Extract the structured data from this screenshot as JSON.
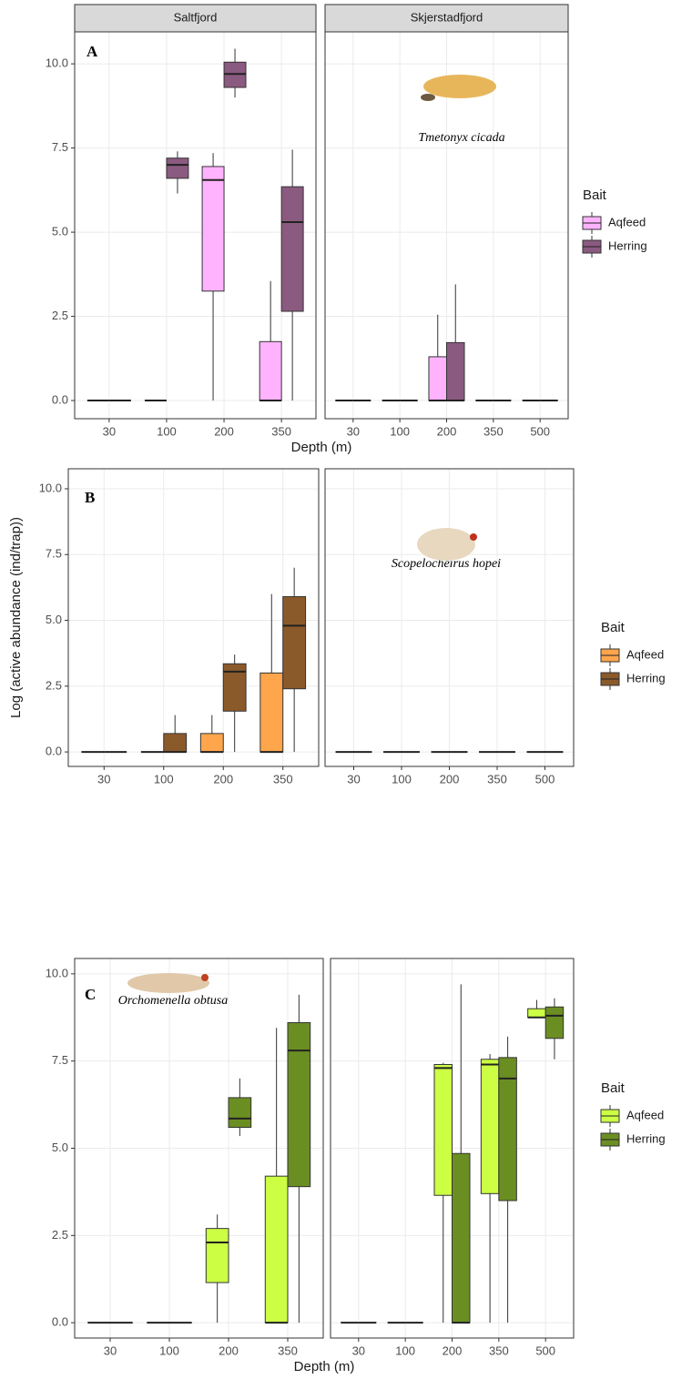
{
  "chart_data": [
    {
      "type": "box",
      "panel_label": "A",
      "species": "Tmetonyx cicada",
      "x_label": "Depth (m)",
      "legend_title": "Bait",
      "ylim": [
        -0.54,
        10.95
      ],
      "yticks": [
        {
          "value": 0,
          "label": "0.0"
        },
        2.5,
        {
          "value": 5,
          "label": "5.0"
        },
        7.5,
        {
          "value": 10,
          "label": "10.0"
        }
      ],
      "facets": [
        {
          "title": "Saltfjord",
          "categories": [
            "30",
            "100",
            "200",
            "350"
          ]
        },
        {
          "title": "Skjerstadfjord",
          "categories": [
            "30",
            "100",
            "200",
            "350",
            "500"
          ]
        }
      ],
      "series": [
        {
          "name": "Aqfeed",
          "color": "#ffb3ff",
          "values": [
            [
              {
                "low": 0,
                "q1": 0,
                "median": 0,
                "q3": 0,
                "high": 0
              },
              {
                "low": 0,
                "q1": 0,
                "median": 0,
                "q3": 0,
                "high": 0
              },
              {
                "low": 0,
                "q1": 3.25,
                "median": 6.55,
                "q3": 6.95,
                "high": 7.35
              },
              {
                "low": 0,
                "q1": 0,
                "median": 0,
                "q3": 1.75,
                "high": 3.55
              }
            ],
            [
              {
                "low": 0,
                "q1": 0,
                "median": 0,
                "q3": 0,
                "high": 0
              },
              {
                "low": 0,
                "q1": 0,
                "median": 0,
                "q3": 0,
                "high": 0
              },
              {
                "low": 0,
                "q1": 0,
                "median": 0,
                "q3": 1.3,
                "high": 2.55
              },
              {
                "low": 0,
                "q1": 0,
                "median": 0,
                "q3": 0,
                "high": 0
              },
              {
                "low": 0,
                "q1": 0,
                "median": 0,
                "q3": 0,
                "high": 0
              }
            ]
          ]
        },
        {
          "name": "Herring",
          "color": "#8b5a80",
          "values": [
            [
              {
                "low": 0,
                "q1": 0,
                "median": 0,
                "q3": 0,
                "high": 0
              },
              {
                "low": 6.15,
                "q1": 6.6,
                "median": 7.0,
                "q3": 7.2,
                "high": 7.4
              },
              {
                "low": 9.0,
                "q1": 9.3,
                "median": 9.7,
                "q3": 10.05,
                "high": 10.45
              },
              {
                "low": 0,
                "q1": 2.65,
                "median": 5.3,
                "q3": 6.35,
                "high": 7.45
              }
            ],
            [
              {
                "low": 0,
                "q1": 0,
                "median": 0,
                "q3": 0,
                "high": 0
              },
              {
                "low": 0,
                "q1": 0,
                "median": 0,
                "q3": 0,
                "high": 0
              },
              {
                "low": 0,
                "q1": 0,
                "median": 0,
                "q3": 1.72,
                "high": 3.45
              },
              {
                "low": 0,
                "q1": 0,
                "median": 0,
                "q3": 0,
                "high": 0
              },
              {
                "low": 0,
                "q1": 0,
                "median": 0,
                "q3": 0,
                "high": 0
              }
            ]
          ]
        }
      ]
    },
    {
      "type": "box",
      "panel_label": "B",
      "species": "Scopelocheirus hopei",
      "y_label": "Log (active abundance (ind/trap))",
      "legend_title": "Bait",
      "ylim": [
        -0.55,
        10.76
      ],
      "yticks": [
        {
          "value": 0,
          "label": "0.0"
        },
        2.5,
        {
          "value": 5,
          "label": "5.0"
        },
        7.5,
        {
          "value": 10,
          "label": "10.0"
        }
      ],
      "facets": [
        {
          "categories": [
            "30",
            "100",
            "200",
            "350"
          ]
        },
        {
          "categories": [
            "30",
            "100",
            "200",
            "350",
            "500"
          ]
        }
      ],
      "series": [
        {
          "name": "Aqfeed",
          "color": "#ffa64d",
          "values": [
            [
              {
                "low": 0,
                "q1": 0,
                "median": 0,
                "q3": 0,
                "high": 0
              },
              {
                "low": 0,
                "q1": 0,
                "median": 0,
                "q3": 0,
                "high": 0
              },
              {
                "low": 0,
                "q1": 0,
                "median": 0,
                "q3": 0.7,
                "high": 1.4
              },
              {
                "low": 0,
                "q1": 0,
                "median": 0,
                "q3": 3.0,
                "high": 6.0
              }
            ],
            [
              {
                "low": 0,
                "q1": 0,
                "median": 0,
                "q3": 0,
                "high": 0
              },
              {
                "low": 0,
                "q1": 0,
                "median": 0,
                "q3": 0,
                "high": 0
              },
              {
                "low": 0,
                "q1": 0,
                "median": 0,
                "q3": 0,
                "high": 0
              },
              {
                "low": 0,
                "q1": 0,
                "median": 0,
                "q3": 0,
                "high": 0
              },
              {
                "low": 0,
                "q1": 0,
                "median": 0,
                "q3": 0,
                "high": 0
              }
            ]
          ]
        },
        {
          "name": "Herring",
          "color": "#8b5a2b",
          "values": [
            [
              {
                "low": 0,
                "q1": 0,
                "median": 0,
                "q3": 0,
                "high": 0
              },
              {
                "low": 0,
                "q1": 0,
                "median": 0,
                "q3": 0.7,
                "high": 1.4
              },
              {
                "low": 0,
                "q1": 1.55,
                "median": 3.05,
                "q3": 3.35,
                "high": 3.7
              },
              {
                "low": 0,
                "q1": 2.4,
                "median": 4.8,
                "q3": 5.9,
                "high": 7.0
              }
            ],
            [
              {
                "low": 0,
                "q1": 0,
                "median": 0,
                "q3": 0,
                "high": 0
              },
              {
                "low": 0,
                "q1": 0,
                "median": 0,
                "q3": 0,
                "high": 0
              },
              {
                "low": 0,
                "q1": 0,
                "median": 0,
                "q3": 0,
                "high": 0
              },
              {
                "low": 0,
                "q1": 0,
                "median": 0,
                "q3": 0,
                "high": 0
              },
              {
                "low": 0,
                "q1": 0,
                "median": 0,
                "q3": 0,
                "high": 0
              }
            ]
          ]
        }
      ]
    },
    {
      "type": "box",
      "panel_label": "C",
      "species": "Orchomenella obtusa",
      "x_label": "Depth (m)",
      "legend_title": "Bait",
      "ylim": [
        -0.44,
        10.44
      ],
      "yticks": [
        {
          "value": 0,
          "label": "0.0"
        },
        2.5,
        {
          "value": 5,
          "label": "5.0"
        },
        7.5,
        {
          "value": 10,
          "label": "10.0"
        }
      ],
      "facets": [
        {
          "categories": [
            "30",
            "100",
            "200",
            "350"
          ]
        },
        {
          "categories": [
            "30",
            "100",
            "200",
            "350",
            "500"
          ]
        }
      ],
      "series": [
        {
          "name": "Aqfeed",
          "color": "#ccff44",
          "values": [
            [
              {
                "low": 0,
                "q1": 0,
                "median": 0,
                "q3": 0,
                "high": 0
              },
              {
                "low": 0,
                "q1": 0,
                "median": 0,
                "q3": 0,
                "high": 0
              },
              {
                "low": 0,
                "q1": 1.15,
                "median": 2.3,
                "q3": 2.7,
                "high": 3.1
              },
              {
                "low": 0,
                "q1": 0,
                "median": 0,
                "q3": 4.2,
                "high": 8.45
              }
            ],
            [
              {
                "low": 0,
                "q1": 0,
                "median": 0,
                "q3": 0,
                "high": 0
              },
              {
                "low": 0,
                "q1": 0,
                "median": 0,
                "q3": 0,
                "high": 0
              },
              {
                "low": 0,
                "q1": 3.65,
                "median": 7.3,
                "q3": 7.4,
                "high": 7.45
              },
              {
                "low": 0,
                "q1": 3.7,
                "median": 7.4,
                "q3": 7.55,
                "high": 7.7
              },
              {
                "low": 8.75,
                "q1": 8.75,
                "median": 8.75,
                "q3": 9.0,
                "high": 9.25
              }
            ]
          ]
        },
        {
          "name": "Herring",
          "color": "#6b8e23",
          "values": [
            [
              {
                "low": 0,
                "q1": 0,
                "median": 0,
                "q3": 0,
                "high": 0
              },
              {
                "low": 0,
                "q1": 0,
                "median": 0,
                "q3": 0,
                "high": 0
              },
              {
                "low": 5.35,
                "q1": 5.6,
                "median": 5.85,
                "q3": 6.45,
                "high": 7.0
              },
              {
                "low": 0,
                "q1": 3.9,
                "median": 7.8,
                "q3": 8.6,
                "high": 9.4
              }
            ],
            [
              {
                "low": 0,
                "q1": 0,
                "median": 0,
                "q3": 0,
                "high": 0
              },
              {
                "low": 0,
                "q1": 0,
                "median": 0,
                "q3": 0,
                "high": 0
              },
              {
                "low": 0,
                "q1": 0,
                "median": 0,
                "q3": 4.85,
                "high": 9.7
              },
              {
                "low": 0,
                "q1": 3.5,
                "median": 7.0,
                "q3": 7.6,
                "high": 8.2
              },
              {
                "low": 7.55,
                "q1": 8.15,
                "median": 8.8,
                "q3": 9.05,
                "high": 9.3
              }
            ]
          ]
        }
      ]
    }
  ]
}
